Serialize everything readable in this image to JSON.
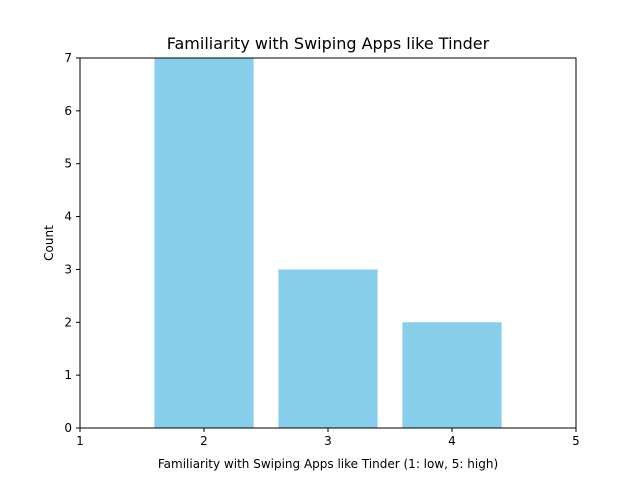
{
  "chart_data": {
    "type": "bar",
    "title": "Familiarity with Swiping Apps like Tinder",
    "xlabel": "Familiarity with Swiping Apps like Tinder (1: low, 5: high)",
    "ylabel": "Count",
    "categories": [
      2,
      3,
      4
    ],
    "values": [
      7,
      3,
      2
    ],
    "xlim": [
      1,
      5
    ],
    "ylim": [
      0,
      7
    ],
    "xticks": [
      "1",
      "2",
      "3",
      "4",
      "5"
    ],
    "yticks": [
      "0",
      "1",
      "2",
      "3",
      "4",
      "5",
      "6",
      "7"
    ],
    "bar_color": "#87CEEB",
    "grid": false,
    "legend": false
  }
}
